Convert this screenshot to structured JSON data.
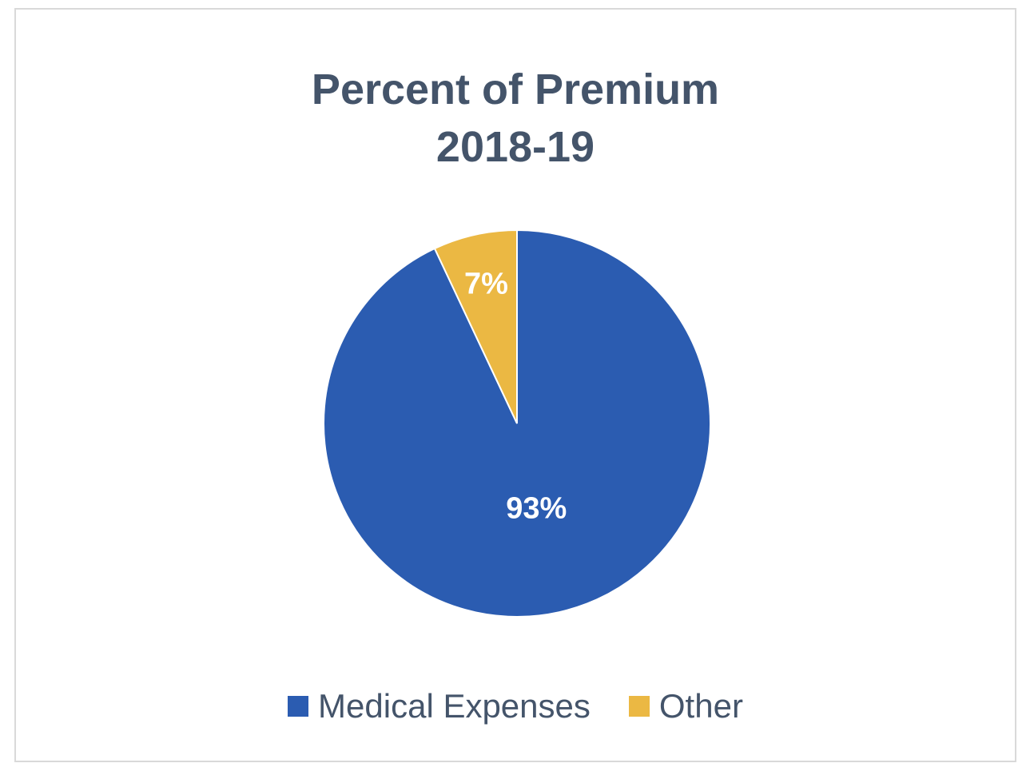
{
  "chart_data": {
    "type": "pie",
    "title": [
      "Percent of Premium",
      "2018-19"
    ],
    "categories": [
      "Medical Expenses",
      "Other"
    ],
    "values": [
      93,
      7
    ],
    "data_labels": [
      "93%",
      "7%"
    ],
    "colors": [
      "#2b5cb1",
      "#ebb843"
    ],
    "start_angle_deg": 0,
    "direction": "clockwise",
    "legend_position": "bottom"
  }
}
